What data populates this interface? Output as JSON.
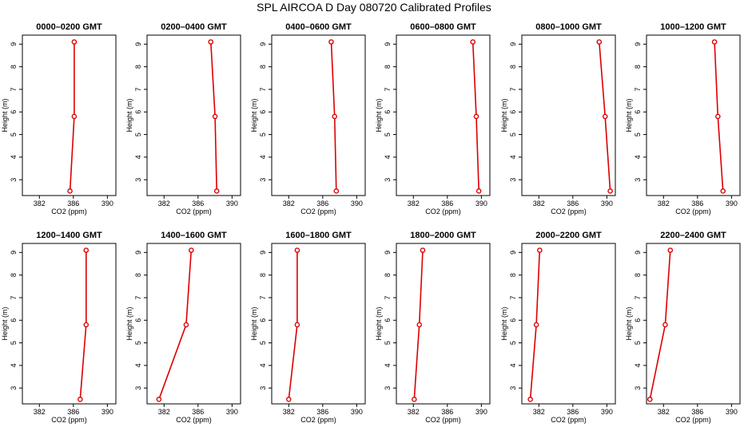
{
  "figure": {
    "title": "SPL AIRCOA D  Day 080720  Calibrated Profiles"
  },
  "colors": {
    "series": "#dd0000",
    "axis": "#000000",
    "background": "#ffffff"
  },
  "chart_data": [
    {
      "type": "line",
      "title": "0000–0200 GMT",
      "xlabel": "CO2 (ppm)",
      "ylabel": "Height (m)",
      "xlim": [
        380,
        391
      ],
      "ylim": [
        2.3,
        9.4
      ],
      "xticks": [
        382,
        386,
        390
      ],
      "yticks": [
        3,
        4,
        5,
        6,
        7,
        8,
        9
      ],
      "x": [
        385.6,
        386.1,
        386.1
      ],
      "y": [
        2.5,
        5.8,
        9.1
      ]
    },
    {
      "type": "line",
      "title": "0200–0400 GMT",
      "xlabel": "CO2 (ppm)",
      "ylabel": "Height (m)",
      "xlim": [
        380,
        391
      ],
      "ylim": [
        2.3,
        9.4
      ],
      "xticks": [
        382,
        386,
        390
      ],
      "yticks": [
        3,
        4,
        5,
        6,
        7,
        8,
        9
      ],
      "x": [
        388.2,
        388.0,
        387.5
      ],
      "y": [
        2.5,
        5.8,
        9.1
      ]
    },
    {
      "type": "line",
      "title": "0400–0600 GMT",
      "xlabel": "CO2 (ppm)",
      "ylabel": "Height (m)",
      "xlim": [
        380,
        391
      ],
      "ylim": [
        2.3,
        9.4
      ],
      "xticks": [
        382,
        386,
        390
      ],
      "yticks": [
        3,
        4,
        5,
        6,
        7,
        8,
        9
      ],
      "x": [
        387.6,
        387.4,
        387.0
      ],
      "y": [
        2.5,
        5.8,
        9.1
      ]
    },
    {
      "type": "line",
      "title": "0600–0800 GMT",
      "xlabel": "CO2 (ppm)",
      "ylabel": "Height (m)",
      "xlim": [
        380,
        391
      ],
      "ylim": [
        2.3,
        9.4
      ],
      "xticks": [
        382,
        386,
        390
      ],
      "yticks": [
        3,
        4,
        5,
        6,
        7,
        8,
        9
      ],
      "x": [
        389.7,
        389.4,
        389.0
      ],
      "y": [
        2.5,
        5.8,
        9.1
      ]
    },
    {
      "type": "line",
      "title": "0800–1000 GMT",
      "xlabel": "CO2 (ppm)",
      "ylabel": "Height (m)",
      "xlim": [
        380,
        391
      ],
      "ylim": [
        2.3,
        9.4
      ],
      "xticks": [
        382,
        386,
        390
      ],
      "yticks": [
        3,
        4,
        5,
        6,
        7,
        8,
        9
      ],
      "x": [
        390.4,
        389.8,
        389.1
      ],
      "y": [
        2.5,
        5.8,
        9.1
      ]
    },
    {
      "type": "line",
      "title": "1000–1200 GMT",
      "xlabel": "CO2 (ppm)",
      "ylabel": "Height (m)",
      "xlim": [
        380,
        391
      ],
      "ylim": [
        2.3,
        9.4
      ],
      "xticks": [
        382,
        386,
        390
      ],
      "yticks": [
        3,
        4,
        5,
        6,
        7,
        8,
        9
      ],
      "x": [
        389.0,
        388.4,
        388.0
      ],
      "y": [
        2.5,
        5.8,
        9.1
      ]
    },
    {
      "type": "line",
      "title": "1200–1400 GMT",
      "xlabel": "CO2 (ppm)",
      "ylabel": "Height (m)",
      "xlim": [
        380,
        391
      ],
      "ylim": [
        2.3,
        9.4
      ],
      "xticks": [
        382,
        386,
        390
      ],
      "yticks": [
        3,
        4,
        5,
        6,
        7,
        8,
        9
      ],
      "x": [
        386.8,
        387.5,
        387.5
      ],
      "y": [
        2.5,
        5.8,
        9.1
      ]
    },
    {
      "type": "line",
      "title": "1400–1600 GMT",
      "xlabel": "CO2 (ppm)",
      "ylabel": "Height (m)",
      "xlim": [
        380,
        391
      ],
      "ylim": [
        2.3,
        9.4
      ],
      "xticks": [
        382,
        386,
        390
      ],
      "yticks": [
        3,
        4,
        5,
        6,
        7,
        8,
        9
      ],
      "x": [
        381.4,
        384.6,
        385.2
      ],
      "y": [
        2.5,
        5.8,
        9.1
      ]
    },
    {
      "type": "line",
      "title": "1600–1800 GMT",
      "xlabel": "CO2 (ppm)",
      "ylabel": "Height (m)",
      "xlim": [
        380,
        391
      ],
      "ylim": [
        2.3,
        9.4
      ],
      "xticks": [
        382,
        386,
        390
      ],
      "yticks": [
        3,
        4,
        5,
        6,
        7,
        8,
        9
      ],
      "x": [
        382.0,
        383.0,
        383.0
      ],
      "y": [
        2.5,
        5.8,
        9.1
      ]
    },
    {
      "type": "line",
      "title": "1800–2000 GMT",
      "xlabel": "CO2 (ppm)",
      "ylabel": "Height (m)",
      "xlim": [
        380,
        391
      ],
      "ylim": [
        2.3,
        9.4
      ],
      "xticks": [
        382,
        386,
        390
      ],
      "yticks": [
        3,
        4,
        5,
        6,
        7,
        8,
        9
      ],
      "x": [
        382.1,
        382.7,
        383.1
      ],
      "y": [
        2.5,
        5.8,
        9.1
      ]
    },
    {
      "type": "line",
      "title": "2000–2200 GMT",
      "xlabel": "CO2 (ppm)",
      "ylabel": "Height (m)",
      "xlim": [
        380,
        391
      ],
      "ylim": [
        2.3,
        9.4
      ],
      "xticks": [
        382,
        386,
        390
      ],
      "yticks": [
        3,
        4,
        5,
        6,
        7,
        8,
        9
      ],
      "x": [
        381.0,
        381.7,
        382.1
      ],
      "y": [
        2.5,
        5.8,
        9.1
      ]
    },
    {
      "type": "line",
      "title": "2200–2400 GMT",
      "xlabel": "CO2 (ppm)",
      "ylabel": "Height (m)",
      "xlim": [
        380,
        391
      ],
      "ylim": [
        2.3,
        9.4
      ],
      "xticks": [
        382,
        386,
        390
      ],
      "yticks": [
        3,
        4,
        5,
        6,
        7,
        8,
        9
      ],
      "x": [
        380.4,
        382.2,
        382.8
      ],
      "y": [
        2.5,
        5.8,
        9.1
      ]
    }
  ]
}
